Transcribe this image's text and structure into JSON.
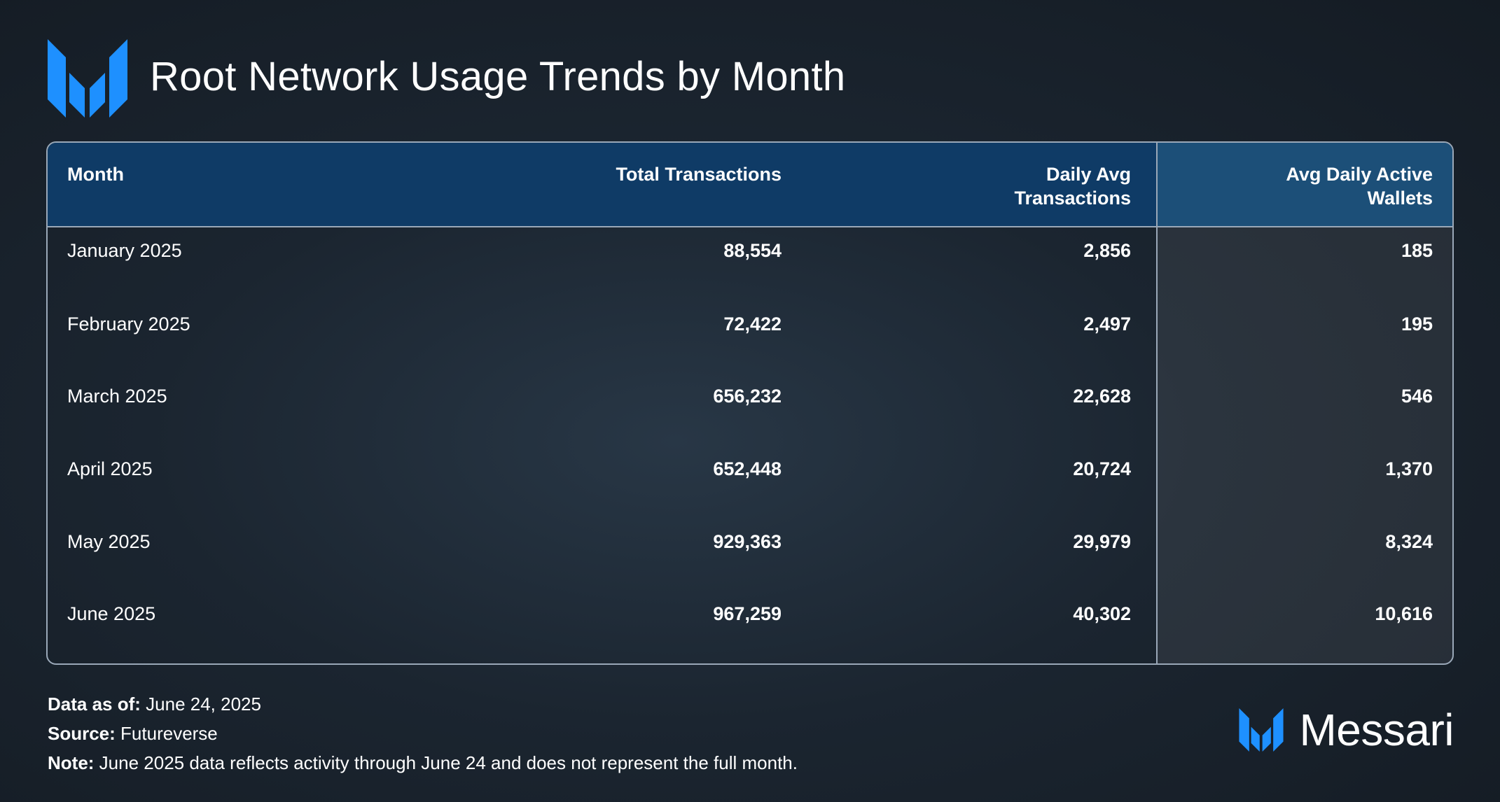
{
  "title": "Root Network Usage Trends by Month",
  "brand": {
    "name": "Messari",
    "accent": "#1e90ff"
  },
  "chart_data": {
    "type": "table",
    "title": "Root Network Usage Trends by Month",
    "columns": [
      "Month",
      "Total Transactions",
      "Daily Avg Transactions",
      "Avg Daily Active Wallets"
    ],
    "rows": [
      {
        "month": "January 2025",
        "total": "88,554",
        "daily": "2,856",
        "wallets": "185"
      },
      {
        "month": "February 2025",
        "total": "72,422",
        "daily": "2,497",
        "wallets": "195"
      },
      {
        "month": "March 2025",
        "total": "656,232",
        "daily": "22,628",
        "wallets": "546"
      },
      {
        "month": "April 2025",
        "total": "652,448",
        "daily": "20,724",
        "wallets": "1,370"
      },
      {
        "month": "May 2025",
        "total": "929,363",
        "daily": "29,979",
        "wallets": "8,324"
      },
      {
        "month": "June 2025",
        "total": "967,259",
        "daily": "40,302",
        "wallets": "10,616"
      }
    ]
  },
  "footer": {
    "data_as_of_label": "Data as of:",
    "data_as_of_value": "June 24, 2025",
    "source_label": "Source:",
    "source_value": "Futureverse",
    "note_label": "Note:",
    "note_value": "June 2025 data reflects activity through June 24 and does not represent the full month."
  }
}
